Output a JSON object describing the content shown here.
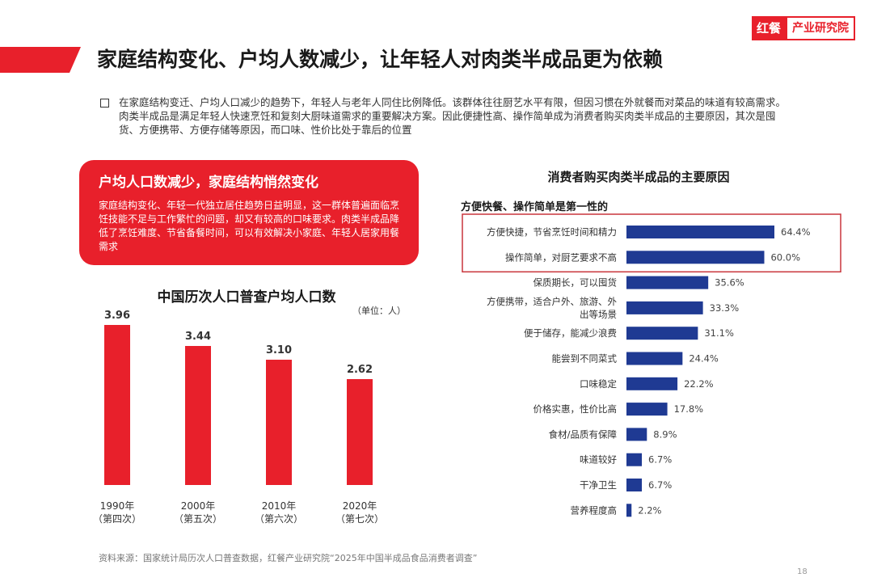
{
  "logo": {
    "brand": "红餐",
    "text": "产业研究院"
  },
  "title": "家庭结构变化、户均人数减少，让年轻人对肉类半成品更为依赖",
  "intro": "在家庭结构变迁、户均人口减少的趋势下，年轻人与老年人同住比例降低。该群体往往厨艺水平有限，但因习惯在外就餐而对菜品的味道有较高需求。肉类半成品是满足年轻人快速烹饪和复刻大厨味道需求的重要解决方案。因此便捷性高、操作简单成为消费者购买肉类半成品的主要原因，其次是囤货、方便携带、方便存储等原因，而口味、性价比处于靠后的位置",
  "redbox": {
    "title": "户均人口数减少，家庭结构悄然变化",
    "body": "家庭结构变化、年轻一代独立居住趋势日益明显，这一群体普遍面临烹饪技能不足与工作繁忙的问题，却又有较高的口味要求。肉类半成品降低了烹饪难度、节省备餐时间，可以有效解决小家庭、年轻人居家用餐需求"
  },
  "source": "资料来源：国家统计局历次人口普查数据，红餐产业研究院“2025年中国半成品食品消费者调查”",
  "page_number": "18",
  "colors": {
    "red": "#e8202b",
    "navy": "#1f3a93",
    "highlight_border": "#c9353b"
  },
  "chart_data": [
    {
      "type": "bar",
      "title": "中国历次人口普查户均人口数",
      "unit": "（单位：人）",
      "categories": [
        "1990年",
        "2000年",
        "2010年",
        "2020年"
      ],
      "sublabels": [
        "（第四次）",
        "（第五次）",
        "（第六次）",
        "（第七次）"
      ],
      "values": [
        3.96,
        3.44,
        3.1,
        2.62
      ],
      "value_labels": [
        "3.96",
        "3.44",
        "3.10",
        "2.62"
      ],
      "ylim": [
        0,
        4.6
      ],
      "color": "#e8202b",
      "grid": false
    },
    {
      "type": "bar",
      "orientation": "horizontal",
      "title": "消费者购买肉类半成品的主要原因",
      "subtitle": "方便快餐、操作简单是第一性的",
      "categories": [
        [
          "方便快捷，节省烹饪时间和精力"
        ],
        [
          "操作简单，对厨艺要求不高"
        ],
        [
          "保质期长，可以囤货"
        ],
        [
          "方便携带，适合户外、旅游、外",
          "出等场景"
        ],
        [
          "便于储存，能减少浪费"
        ],
        [
          "能尝到不同菜式"
        ],
        [
          "口味稳定"
        ],
        [
          "价格实惠，性价比高"
        ],
        [
          "食材/品质有保障"
        ],
        [
          "味道较好"
        ],
        [
          "干净卫生"
        ],
        [
          "营养程度高"
        ]
      ],
      "values": [
        64.4,
        60.0,
        35.6,
        33.3,
        31.1,
        24.4,
        22.2,
        17.8,
        8.9,
        6.7,
        6.7,
        2.2
      ],
      "value_labels": [
        "64.4%",
        "60.0%",
        "35.6%",
        "33.3%",
        "31.1%",
        "24.4%",
        "22.2%",
        "17.8%",
        "8.9%",
        "6.7%",
        "6.7%",
        "2.2%"
      ],
      "highlighted": [
        0,
        1
      ],
      "xlim": [
        0,
        100
      ],
      "color": "#1f3a93",
      "grid": false
    }
  ]
}
